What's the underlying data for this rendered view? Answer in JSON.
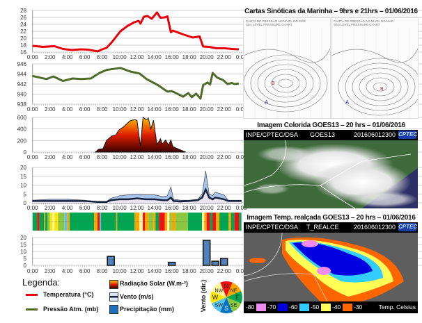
{
  "chart_data": [
    {
      "type": "line",
      "id": "temperature",
      "ylim": [
        16,
        28
      ],
      "yticks": [
        16,
        18,
        20,
        22,
        24,
        26,
        28
      ],
      "x_tick_labels": [
        "0:00",
        "2:00",
        "4:00",
        "6:00",
        "8:00",
        "10:00",
        "12:00",
        "14:00",
        "16:00",
        "18:00",
        "20:00",
        "22:00",
        "0:00"
      ],
      "grid": true,
      "color": "#e8000b",
      "series": [
        {
          "points": [
            [
              0,
              17.8
            ],
            [
              1.2,
              17.5
            ],
            [
              2.5,
              17.7
            ],
            [
              3.5,
              16.9
            ],
            [
              4.5,
              16.6
            ],
            [
              5.6,
              16.8
            ],
            [
              6.4,
              16.7
            ],
            [
              7.5,
              16.2
            ],
            [
              8,
              16.8
            ],
            [
              8.5,
              17.2
            ],
            [
              9.1,
              18.8
            ],
            [
              10.1,
              22
            ],
            [
              10.9,
              23.5
            ],
            [
              11.7,
              24.6
            ],
            [
              12.2,
              25
            ],
            [
              12.4,
              24.2
            ],
            [
              12.8,
              26.2
            ],
            [
              13.2,
              26.4
            ],
            [
              13.7,
              25.6
            ],
            [
              14.3,
              27.4
            ],
            [
              14.7,
              25.9
            ],
            [
              15.2,
              26
            ],
            [
              15.5,
              26.3
            ],
            [
              15.9,
              21.7
            ],
            [
              16.1,
              22.2
            ],
            [
              17.3,
              21.1
            ],
            [
              18.4,
              20.2
            ],
            [
              19.2,
              20.5
            ],
            [
              19.6,
              17.6
            ],
            [
              20.3,
              17.5
            ],
            [
              21.1,
              17.1
            ],
            [
              22.1,
              17.1
            ],
            [
              22.9,
              16.9
            ],
            [
              23.7,
              16.8
            ]
          ]
        }
      ]
    },
    {
      "type": "line",
      "id": "pressure",
      "ylim": [
        938,
        946
      ],
      "yticks": [
        938,
        940,
        942,
        944,
        946
      ],
      "x_tick_labels": [
        "0:00",
        "2:00",
        "4:00",
        "6:00",
        "8:00",
        "10:00",
        "12:00",
        "14:00",
        "16:00",
        "18:00",
        "20:00",
        "22:00",
        "0:00"
      ],
      "grid": true,
      "color": "#4f6b28",
      "series": [
        {
          "points": [
            [
              0,
              943.6
            ],
            [
              1.6,
              943
            ],
            [
              2.4,
              943.5
            ],
            [
              3.5,
              942.6
            ],
            [
              4.6,
              943.1
            ],
            [
              5.6,
              943
            ],
            [
              6.7,
              943.1
            ],
            [
              7.7,
              944.2
            ],
            [
              8.5,
              944.8
            ],
            [
              10.1,
              945.2
            ],
            [
              11.2,
              944.5
            ],
            [
              12.3,
              944.1
            ],
            [
              13.1,
              943
            ],
            [
              14.4,
              941.8
            ],
            [
              15.5,
              940.5
            ],
            [
              16,
              940.6
            ],
            [
              17.3,
              939.5
            ],
            [
              17.9,
              940.2
            ],
            [
              18.3,
              939.4
            ],
            [
              18.8,
              940.1
            ],
            [
              19.3,
              939.1
            ],
            [
              19.6,
              941.8
            ],
            [
              20.1,
              942.3
            ],
            [
              20.4,
              941.9
            ],
            [
              20.7,
              944.2
            ],
            [
              21.2,
              943.3
            ],
            [
              21.9,
              942.8
            ],
            [
              22.4,
              942
            ],
            [
              22.9,
              942.2
            ],
            [
              23.2,
              942
            ],
            [
              23.7,
              942.1
            ]
          ]
        }
      ]
    },
    {
      "type": "area",
      "id": "solar-radiation",
      "ylim": [
        0,
        600
      ],
      "yticks": [
        0,
        200,
        400,
        600
      ],
      "x_tick_labels": [
        "0:00",
        "2:00",
        "4:00",
        "6:00",
        "8:00",
        "10:00",
        "12:00",
        "14:00",
        "16:00",
        "18:00",
        "20:00",
        "22:00",
        "0:00"
      ],
      "grid": true,
      "colors": [
        "#ffc000",
        "#e02000",
        "#3a0000"
      ],
      "series": [
        {
          "points": [
            [
              7.2,
              0
            ],
            [
              7.6,
              50
            ],
            [
              8.1,
              60
            ],
            [
              8.5,
              200
            ],
            [
              9.1,
              280
            ],
            [
              9.6,
              300
            ],
            [
              9.9,
              380
            ],
            [
              10.4,
              430
            ],
            [
              11.2,
              540
            ],
            [
              11.7,
              560
            ],
            [
              12,
              550
            ],
            [
              12.4,
              100
            ],
            [
              12.7,
              600
            ],
            [
              13.1,
              560
            ],
            [
              13.3,
              590
            ],
            [
              13.6,
              400
            ],
            [
              13.9,
              550
            ],
            [
              14.3,
              130
            ],
            [
              14.7,
              230
            ],
            [
              14.9,
              140
            ],
            [
              15.3,
              210
            ],
            [
              15.6,
              120
            ],
            [
              15.9,
              210
            ],
            [
              16.1,
              100
            ],
            [
              16.5,
              70
            ],
            [
              17.6,
              0
            ]
          ]
        }
      ]
    },
    {
      "type": "area",
      "id": "wind-speed",
      "ylim": [
        0,
        20
      ],
      "yticks": [
        0,
        5,
        10,
        15,
        20
      ],
      "x_tick_labels": [
        "0:00",
        "2:00",
        "4:00",
        "6:00",
        "8:00",
        "10:00",
        "12:00",
        "14:00",
        "16:00",
        "18:00",
        "20:00",
        "22:00",
        "0:00"
      ],
      "grid": true,
      "colors": [
        "#a8c3ea",
        "#15213b"
      ],
      "series": [
        {
          "points": [
            [
              0,
              1.5
            ],
            [
              2,
              2
            ],
            [
              4,
              2
            ],
            [
              6,
              1.5
            ],
            [
              7.5,
              0.5
            ],
            [
              8.5,
              0.8
            ],
            [
              9,
              2.5
            ],
            [
              10,
              4
            ],
            [
              11,
              4.5
            ],
            [
              12,
              5
            ],
            [
              13,
              4.5
            ],
            [
              14,
              4.5
            ],
            [
              15,
              3.5
            ],
            [
              15.5,
              4
            ],
            [
              15.9,
              9
            ],
            [
              16.2,
              2
            ],
            [
              17,
              1.5
            ],
            [
              18,
              1.5
            ],
            [
              19,
              2
            ],
            [
              19.5,
              5
            ],
            [
              19.9,
              18
            ],
            [
              20.3,
              5
            ],
            [
              20.7,
              4
            ],
            [
              21,
              6
            ],
            [
              22,
              4.5
            ],
            [
              22.5,
              1.5
            ],
            [
              24,
              1.5
            ]
          ]
        },
        {
          "points": [
            [
              0,
              1
            ],
            [
              2,
              1
            ],
            [
              4,
              1
            ],
            [
              6,
              1
            ],
            [
              7.5,
              0.5
            ],
            [
              8.5,
              0.5
            ],
            [
              9,
              1.5
            ],
            [
              10,
              2
            ],
            [
              11,
              2
            ],
            [
              12,
              2.5
            ],
            [
              13,
              2
            ],
            [
              14,
              2
            ],
            [
              15,
              1.5
            ],
            [
              15.5,
              1.5
            ],
            [
              15.9,
              3
            ],
            [
              16.2,
              1
            ],
            [
              17,
              0.8
            ],
            [
              18,
              1
            ],
            [
              19,
              1.5
            ],
            [
              19.5,
              3
            ],
            [
              19.9,
              7.5
            ],
            [
              20.3,
              3
            ],
            [
              20.7,
              2
            ],
            [
              21,
              3
            ],
            [
              22,
              2
            ],
            [
              22.5,
              1
            ],
            [
              24,
              1
            ]
          ]
        }
      ]
    },
    {
      "type": "heatmap",
      "id": "wind-direction",
      "direction_colors": {
        "N": "#ee1111",
        "NE": "#f7a800",
        "E": "#00a651",
        "SE": "#8dc63f",
        "S": "#0070c0",
        "SW": "#5bc0eb",
        "W": "#ffe600",
        "NW": "#fff5a0"
      },
      "segments": [
        [
          0,
          "E"
        ],
        [
          0.53,
          "N"
        ],
        [
          0.8,
          "E"
        ],
        [
          1.33,
          "NE"
        ],
        [
          1.47,
          "E"
        ],
        [
          1.73,
          "SE"
        ],
        [
          2,
          "W"
        ],
        [
          2.27,
          "NW"
        ],
        [
          2.53,
          "W"
        ],
        [
          2.93,
          "SE"
        ],
        [
          3.68,
          "SW"
        ],
        [
          4,
          "NE"
        ],
        [
          4.27,
          "E"
        ],
        [
          7.07,
          "NE"
        ],
        [
          7.47,
          "N"
        ],
        [
          7.73,
          "SW"
        ],
        [
          7.87,
          "E"
        ],
        [
          9.6,
          "NE"
        ],
        [
          9.73,
          "E"
        ],
        [
          11.73,
          "NE"
        ],
        [
          12.27,
          "NW"
        ],
        [
          12.67,
          "N"
        ],
        [
          12.93,
          "NE"
        ],
        [
          13.33,
          "SE"
        ],
        [
          13.87,
          "NE"
        ],
        [
          14.13,
          "E"
        ],
        [
          14.53,
          "N"
        ],
        [
          15.2,
          "NE"
        ],
        [
          15.47,
          "NW"
        ],
        [
          15.73,
          "SE"
        ],
        [
          16,
          "NE"
        ],
        [
          16.4,
          "SE"
        ],
        [
          17.87,
          "E"
        ],
        [
          19.47,
          "NW"
        ],
        [
          19.73,
          "NE"
        ],
        [
          20,
          "N"
        ],
        [
          20.4,
          "E"
        ],
        [
          20.67,
          "N"
        ],
        [
          21.07,
          "NE"
        ],
        [
          21.47,
          "E"
        ],
        [
          22.53,
          "NE"
        ],
        [
          22.8,
          "E"
        ],
        [
          23.2,
          "N"
        ],
        [
          23.73,
          "E"
        ]
      ]
    },
    {
      "type": "bar",
      "id": "precipitation",
      "ylim": [
        0,
        20
      ],
      "yticks": [
        0,
        5,
        10,
        15,
        20
      ],
      "x_tick_labels": [
        "0:00",
        "2:00",
        "4:00",
        "6:00",
        "8:00",
        "10:00",
        "12:00",
        "14:00",
        "16:00",
        "18:00",
        "20:00",
        "22:00",
        "0:00"
      ],
      "grid": true,
      "color": "#4f81bd",
      "bars": [
        [
          9,
          6.5
        ],
        [
          16,
          2.2
        ],
        [
          20,
          18
        ],
        [
          21,
          3
        ],
        [
          22,
          5
        ]
      ]
    }
  ],
  "legend": {
    "title": "Legenda:",
    "temperature": "Temperatura (°C)",
    "pressure": "Pressão Atm.  (mb)",
    "radiation": "Radiação Solar (W.m-²)",
    "wind": "Vento (m/s)",
    "precip": "Precipitação (mm)",
    "wind_dir_label": "Vento (dir.)",
    "compass": [
      "N",
      "NE",
      "E",
      "SE",
      "S",
      "SW",
      "W",
      "NW"
    ]
  },
  "right": {
    "synoptic_title": "Cartas Sinóticas da Marinha – 9hrs e 21hrs –  01/06/2016",
    "map_hdr1": "CARTA DE PRESSÃO AO NÍVEL DO MAR",
    "map_hdr2": "SEA LEVEL PRESSURE CHART",
    "goes_title": "Imagem Colorida GOES13  – 20 hrs – 01/06/2016",
    "realce_title": "Imagem Temp. realçada GOES13  – 20 hrs – 01/06/2016",
    "source": "INPE/CPTEC/DSA",
    "sat_name": "GOES13",
    "product": "T_REALCE",
    "timestamp": "201606012300",
    "logo": "CPTEC",
    "scale": [
      {
        "label": "-80",
        "color": "#f08cf0"
      },
      {
        "label": "-70",
        "color": "#0000e0"
      },
      {
        "label": "-60",
        "color": "#33ccff"
      },
      {
        "label": "-50",
        "color": "#ffff55"
      },
      {
        "label": "-40",
        "color": "#ff6600"
      },
      {
        "label": "-30",
        "color": ""
      }
    ],
    "scale_unit": "Temp. Celsius"
  }
}
